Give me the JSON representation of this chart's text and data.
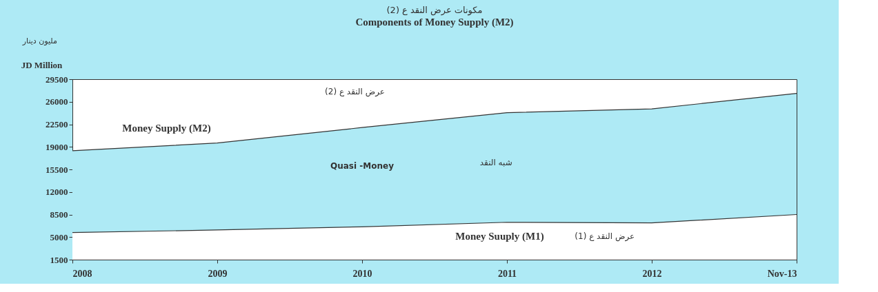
{
  "chart_data": {
    "type": "area",
    "title": "مكونات عرض النقد ع (2)",
    "subtitle": "Components of Money Supply (M2)",
    "ylabel": "JD Million",
    "categories": [
      "2008",
      "2009",
      "2010",
      "2011",
      "2012",
      "Nov-13"
    ],
    "series": [
      {
        "name": "Money Supply (M2)",
        "color": "#aeeaf5",
        "values": [
          18400,
          19600,
          22000,
          24300,
          24900,
          27300
        ]
      },
      {
        "name": "Money Suuply (M1)",
        "color": "#ffffff",
        "values": [
          5700,
          6100,
          6600,
          7300,
          7200,
          8500
        ]
      }
    ],
    "ylim": [
      1500,
      29500
    ],
    "yticks": [
      1500,
      5000,
      8500,
      12000,
      15500,
      19000,
      22500,
      26000,
      29500
    ],
    "annotations": [
      "مليون دينار",
      "عرض النقد ع (2)",
      "Quasi -Money",
      "شبه النقد",
      "عرض النقد ع (1)"
    ]
  }
}
